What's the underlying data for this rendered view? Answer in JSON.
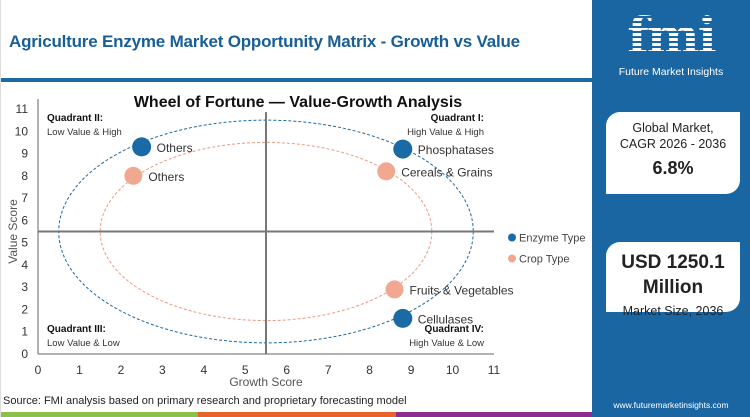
{
  "header": {
    "title": "Agriculture Enzyme Market Opportunity Matrix - Growth vs Value"
  },
  "chart_data": {
    "type": "scatter",
    "title": "Wheel of Fortune — Value-Growth Analysis",
    "xlabel": "Growth Score",
    "ylabel": "Value Score",
    "xlim": [
      0,
      11
    ],
    "ylim": [
      0,
      11
    ],
    "xticks": [
      "0",
      "1",
      "2",
      "3",
      "4",
      "5",
      "6",
      "7",
      "8",
      "9",
      "10",
      "11"
    ],
    "yticks": [
      "0",
      "1",
      "2",
      "3",
      "4",
      "5",
      "6",
      "7",
      "8",
      "9",
      "10",
      "11"
    ],
    "divider": {
      "x": 5.5,
      "y": 5.5
    },
    "rings": [
      {
        "series": "Enzyme Type",
        "cx": 5.5,
        "cy": 5.5,
        "rx": 5,
        "ry": 5
      },
      {
        "series": "Crop Type",
        "cx": 5.5,
        "cy": 5.5,
        "rx": 4,
        "ry": 4
      }
    ],
    "series": [
      {
        "name": "Enzyme Type",
        "color": "#1a6aa6",
        "points": [
          {
            "label": "Others",
            "x": 2.5,
            "y": 9.3
          },
          {
            "label": "Phosphatases",
            "x": 8.8,
            "y": 9.2
          },
          {
            "label": "Cellulases",
            "x": 8.8,
            "y": 1.6
          }
        ]
      },
      {
        "name": "Crop Type",
        "color": "#f0a890",
        "points": [
          {
            "label": "Others",
            "x": 2.3,
            "y": 8.0
          },
          {
            "label": "Cereals & Grains",
            "x": 8.4,
            "y": 8.2
          },
          {
            "label": "Fruits & Vegetables",
            "x": 8.6,
            "y": 2.9
          }
        ]
      }
    ],
    "quadrants": [
      {
        "title": "Quadrant II:",
        "desc": "Low Value & High",
        "pos": "top-left"
      },
      {
        "title": "Quadrant I:",
        "desc": "High Value & High",
        "pos": "top-right"
      },
      {
        "title": "Quadrant III:",
        "desc": "Low Value & Low",
        "pos": "bottom-left"
      },
      {
        "title": "Quadrant IV:",
        "desc": "High Value & Low",
        "pos": "bottom-right"
      }
    ],
    "legend_position": "right"
  },
  "source": "Source: FMI analysis based on primary research and proprietary forecasting model",
  "bottom_colors": [
    "#8dc04a",
    "#e8632b",
    "#8b2e8f"
  ],
  "side": {
    "logo_mark": "fmi",
    "logo_text": "Future Market Insights",
    "cagr_label1": "Global Market,",
    "cagr_label2": "CAGR 2026 - 2036",
    "cagr_value": "6.8%",
    "size_value1": "USD 1250.1",
    "size_value2": "Million",
    "size_label": "Market Size, 2036",
    "url": "www.futuremarketinsights.com"
  }
}
